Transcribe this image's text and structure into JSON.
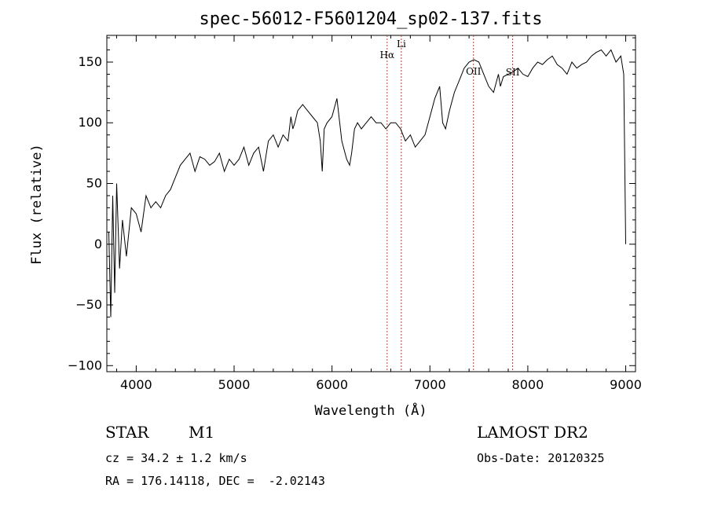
{
  "chart_data": {
    "type": "line",
    "title": "spec-56012-F5601204_sp02-137.fits",
    "xlabel": "Wavelength (Å)",
    "ylabel": "Flux (relative)",
    "xlim": [
      3700,
      9100
    ],
    "ylim": [
      -105,
      172
    ],
    "xticks": [
      4000,
      5000,
      6000,
      7000,
      8000,
      9000
    ],
    "yticks": [
      -100,
      -50,
      0,
      50,
      100,
      150
    ],
    "grid": false,
    "spectral_lines": [
      {
        "name": "Hα",
        "wavelength": 6563
      },
      {
        "name": "Li",
        "wavelength": 6708
      },
      {
        "name": "OII",
        "wavelength": 7445
      },
      {
        "name": "SII",
        "wavelength": 7845
      }
    ],
    "series": [
      {
        "x": [
          3720,
          3740,
          3760,
          3780,
          3800,
          3830,
          3860,
          3900,
          3950,
          4000,
          4050,
          4100,
          4150,
          4200,
          4250,
          4300,
          4350,
          4400,
          4450,
          4500,
          4550,
          4600,
          4650,
          4700,
          4750,
          4800,
          4850,
          4900,
          4950,
          5000,
          5050,
          5100,
          5150,
          5200,
          5250,
          5300,
          5350,
          5400,
          5450,
          5500,
          5550,
          5580,
          5600,
          5620,
          5650,
          5700,
          5750,
          5800,
          5850,
          5880,
          5900,
          5920,
          5950,
          6000,
          6050,
          6100,
          6150,
          6180,
          6200,
          6230,
          6260,
          6300,
          6350,
          6400,
          6450,
          6500,
          6550,
          6600,
          6650,
          6700,
          6750,
          6800,
          6850,
          6900,
          6950,
          7000,
          7050,
          7100,
          7130,
          7160,
          7200,
          7250,
          7300,
          7350,
          7400,
          7450,
          7500,
          7550,
          7600,
          7650,
          7700,
          7720,
          7750,
          7800,
          7850,
          7900,
          7950,
          8000,
          8050,
          8100,
          8150,
          8200,
          8250,
          8300,
          8350,
          8400,
          8450,
          8500,
          8550,
          8600,
          8650,
          8700,
          8750,
          8800,
          8850,
          8900,
          8950,
          8980,
          9000
        ],
        "y": [
          10,
          -60,
          40,
          -40,
          50,
          -20,
          20,
          -10,
          30,
          25,
          10,
          40,
          30,
          35,
          30,
          40,
          45,
          55,
          65,
          70,
          75,
          60,
          72,
          70,
          65,
          68,
          75,
          60,
          70,
          65,
          70,
          80,
          65,
          75,
          80,
          60,
          85,
          90,
          80,
          90,
          85,
          105,
          95,
          100,
          110,
          115,
          110,
          105,
          100,
          85,
          60,
          95,
          100,
          105,
          120,
          85,
          70,
          65,
          75,
          95,
          100,
          95,
          100,
          105,
          100,
          100,
          95,
          100,
          100,
          95,
          85,
          90,
          80,
          85,
          90,
          105,
          120,
          130,
          100,
          95,
          110,
          125,
          135,
          145,
          150,
          152,
          150,
          140,
          130,
          125,
          140,
          130,
          138,
          140,
          142,
          145,
          140,
          138,
          145,
          150,
          148,
          152,
          155,
          148,
          145,
          140,
          150,
          145,
          148,
          150,
          155,
          158,
          160,
          155,
          160,
          150,
          155,
          140,
          0
        ]
      }
    ]
  },
  "info": {
    "object_class": "STAR",
    "subclass": "M1",
    "release": "LAMOST DR2",
    "redshift": "cz = 34.2 ± 1.2 km/s",
    "obs_date": "Obs-Date: 20120325",
    "coords": "RA = 176.14118, DEC =  -2.02143"
  },
  "colors": {
    "spectrum": "#000000",
    "line_markers": "#c0392b",
    "axes": "#000000"
  }
}
